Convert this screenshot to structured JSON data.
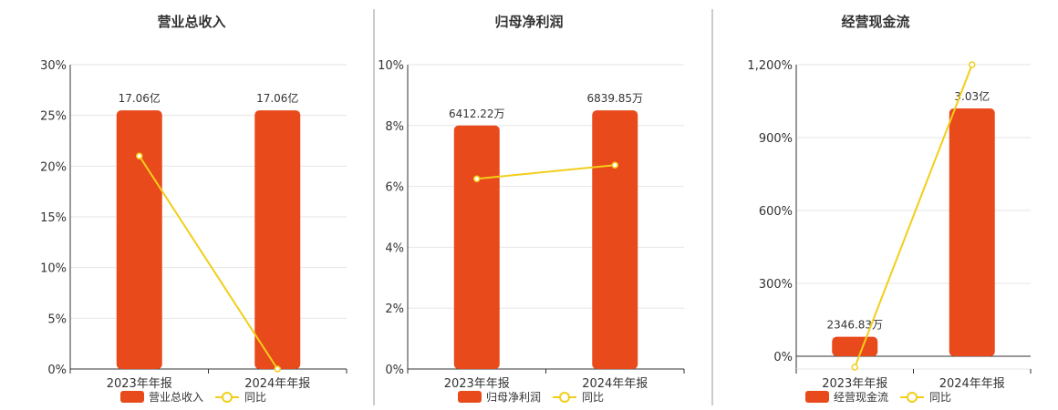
{
  "colors": {
    "bar": "#e84a1b",
    "line": "#f2ce1a",
    "dot_fill": "#ffffff"
  },
  "chart_data": [
    {
      "type": "bar",
      "title": "营业总收入",
      "categories": [
        "2023年年报",
        "2024年年报"
      ],
      "bar_labels": [
        "17.06亿",
        "17.06亿"
      ],
      "series": [
        {
          "name": "营业总收入",
          "type": "bar",
          "values": [
            25.5,
            25.5
          ]
        },
        {
          "name": "同比",
          "type": "line",
          "values": [
            21,
            0
          ]
        }
      ],
      "y_ticks": [
        "30%",
        "25%",
        "20%",
        "15%",
        "10%",
        "5%",
        "0%"
      ],
      "ylim": [
        0,
        30
      ],
      "grid": true,
      "legend": "bottom"
    },
    {
      "type": "bar",
      "title": "归母净利润",
      "categories": [
        "2023年年报",
        "2024年年报"
      ],
      "bar_labels": [
        "6412.22万",
        "6839.85万"
      ],
      "series": [
        {
          "name": "归母净利润",
          "type": "bar",
          "values": [
            8.0,
            8.5
          ]
        },
        {
          "name": "同比",
          "type": "line",
          "values": [
            6.25,
            6.7
          ]
        }
      ],
      "y_ticks": [
        "10%",
        "8%",
        "6%",
        "4%",
        "2%",
        "0%"
      ],
      "ylim": [
        0,
        10
      ],
      "grid": true,
      "legend": "bottom"
    },
    {
      "type": "bar",
      "title": "经营现金流",
      "categories": [
        "2023年年报",
        "2024年年报"
      ],
      "bar_labels": [
        "2346.83万",
        "3.03亿"
      ],
      "series": [
        {
          "name": "经营现金流",
          "type": "bar",
          "values": [
            80,
            1020
          ]
        },
        {
          "name": "同比",
          "type": "line",
          "values": [
            -45,
            1200
          ]
        }
      ],
      "y_ticks": [
        "1,200%",
        "900%",
        "600%",
        "300%",
        "0%"
      ],
      "ylim": [
        0,
        1200
      ],
      "grid": true,
      "legend": "bottom"
    }
  ]
}
